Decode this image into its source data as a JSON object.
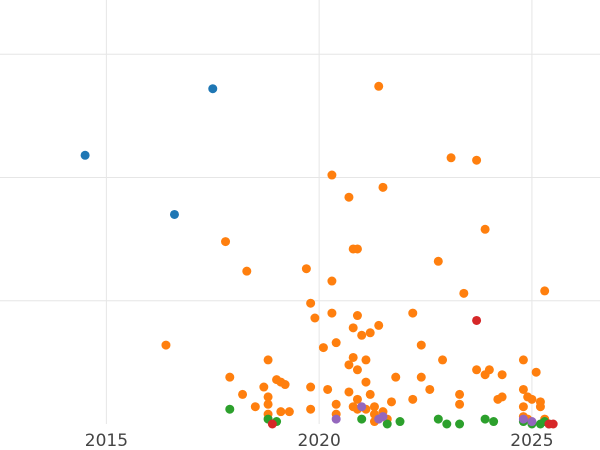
{
  "chart_data": {
    "type": "scatter",
    "title": "",
    "xlabel": "",
    "ylabel": "",
    "xlim": [
      2012.5,
      2026.6
    ],
    "ylim": [
      0,
      17.2
    ],
    "x_ticks": [
      {
        "value": 2015,
        "label": "2015"
      },
      {
        "value": 2020,
        "label": "2020"
      },
      {
        "value": 2025,
        "label": "2025"
      }
    ],
    "y_gridlines": [
      5,
      10,
      15
    ],
    "grid": true,
    "legend": "none",
    "series": [
      {
        "color": "#1f77b4",
        "points": [
          [
            2014.5,
            10.9
          ],
          [
            2017.5,
            13.6
          ],
          [
            2016.6,
            8.5
          ]
        ]
      },
      {
        "color": "#ff7f0e",
        "points": [
          [
            2021.4,
            13.7
          ],
          [
            2023.1,
            10.8
          ],
          [
            2023.7,
            10.7
          ],
          [
            2020.3,
            10.1
          ],
          [
            2021.5,
            9.6
          ],
          [
            2020.7,
            9.2
          ],
          [
            2023.9,
            7.9
          ],
          [
            2017.8,
            7.4
          ],
          [
            2020.8,
            7.1
          ],
          [
            2020.9,
            7.1
          ],
          [
            2022.8,
            6.6
          ],
          [
            2018.3,
            6.2
          ],
          [
            2019.7,
            6.3
          ],
          [
            2020.3,
            5.8
          ],
          [
            2023.4,
            5.3
          ],
          [
            2025.3,
            5.4
          ],
          [
            2019.8,
            4.9
          ],
          [
            2019.9,
            4.3
          ],
          [
            2020.3,
            4.5
          ],
          [
            2020.9,
            4.4
          ],
          [
            2020.8,
            3.9
          ],
          [
            2021.0,
            3.6
          ],
          [
            2021.2,
            3.7
          ],
          [
            2021.4,
            4.0
          ],
          [
            2022.2,
            4.5
          ],
          [
            2016.4,
            3.2
          ],
          [
            2020.1,
            3.1
          ],
          [
            2020.4,
            3.3
          ],
          [
            2022.4,
            3.2
          ],
          [
            2020.8,
            2.7
          ],
          [
            2021.1,
            2.6
          ],
          [
            2020.7,
            2.4
          ],
          [
            2020.9,
            2.2
          ],
          [
            2018.8,
            2.6
          ],
          [
            2022.9,
            2.6
          ],
          [
            2024.8,
            2.6
          ],
          [
            2017.9,
            1.9
          ],
          [
            2019.0,
            1.8
          ],
          [
            2019.1,
            1.7
          ],
          [
            2021.1,
            1.7
          ],
          [
            2021.8,
            1.9
          ],
          [
            2022.4,
            1.9
          ],
          [
            2023.7,
            2.2
          ],
          [
            2023.9,
            2.0
          ],
          [
            2024.0,
            2.2
          ],
          [
            2024.3,
            2.0
          ],
          [
            2025.1,
            2.1
          ],
          [
            2018.7,
            1.5
          ],
          [
            2019.2,
            1.6
          ],
          [
            2019.8,
            1.5
          ],
          [
            2020.2,
            1.4
          ],
          [
            2020.7,
            1.3
          ],
          [
            2022.6,
            1.4
          ],
          [
            2023.3,
            1.2
          ],
          [
            2024.8,
            1.4
          ],
          [
            2018.2,
            1.2
          ],
          [
            2018.8,
            1.1
          ],
          [
            2020.9,
            1.0
          ],
          [
            2021.2,
            1.2
          ],
          [
            2022.2,
            1.0
          ],
          [
            2024.2,
            1.0
          ],
          [
            2024.3,
            1.1
          ],
          [
            2024.9,
            1.1
          ],
          [
            2025.0,
            1.0
          ],
          [
            2025.2,
            0.9
          ],
          [
            2018.5,
            0.7
          ],
          [
            2018.8,
            0.8
          ],
          [
            2019.3,
            0.5
          ],
          [
            2019.8,
            0.6
          ],
          [
            2020.4,
            0.8
          ],
          [
            2020.8,
            0.7
          ],
          [
            2020.9,
            0.6
          ],
          [
            2021.1,
            0.6
          ],
          [
            2021.3,
            0.7
          ],
          [
            2021.7,
            0.9
          ],
          [
            2023.3,
            0.8
          ],
          [
            2024.8,
            0.7
          ],
          [
            2025.2,
            0.7
          ],
          [
            2018.8,
            0.4
          ],
          [
            2019.1,
            0.5
          ],
          [
            2020.4,
            0.4
          ],
          [
            2021.3,
            0.4
          ],
          [
            2021.5,
            0.5
          ],
          [
            2025.3,
            0.2
          ],
          [
            2021.3,
            0.1
          ],
          [
            2021.6,
            0.2
          ],
          [
            2024.8,
            0.3
          ],
          [
            2024.9,
            0.2
          ]
        ]
      },
      {
        "color": "#2ca02c",
        "points": [
          [
            2017.9,
            0.6
          ],
          [
            2018.8,
            0.2
          ],
          [
            2019.0,
            0.1
          ],
          [
            2021.0,
            0.2
          ],
          [
            2021.6,
            0.0
          ],
          [
            2021.9,
            0.1
          ],
          [
            2022.8,
            0.2
          ],
          [
            2023.0,
            0.0
          ],
          [
            2023.3,
            0.0
          ],
          [
            2023.9,
            0.2
          ],
          [
            2024.1,
            0.1
          ],
          [
            2024.8,
            0.1
          ],
          [
            2025.0,
            0.0
          ],
          [
            2025.2,
            0.0
          ],
          [
            2025.3,
            0.1
          ],
          [
            2025.4,
            0.0
          ]
        ]
      },
      {
        "color": "#d62728",
        "points": [
          [
            2023.7,
            4.2
          ],
          [
            2018.9,
            0.0
          ],
          [
            2025.4,
            0.0
          ],
          [
            2025.5,
            0.0
          ]
        ]
      },
      {
        "color": "#9467bd",
        "points": [
          [
            2020.4,
            0.2
          ],
          [
            2021.0,
            0.7
          ],
          [
            2021.5,
            0.3
          ],
          [
            2021.4,
            0.2
          ],
          [
            2024.8,
            0.2
          ],
          [
            2025.0,
            0.1
          ]
        ]
      }
    ]
  }
}
